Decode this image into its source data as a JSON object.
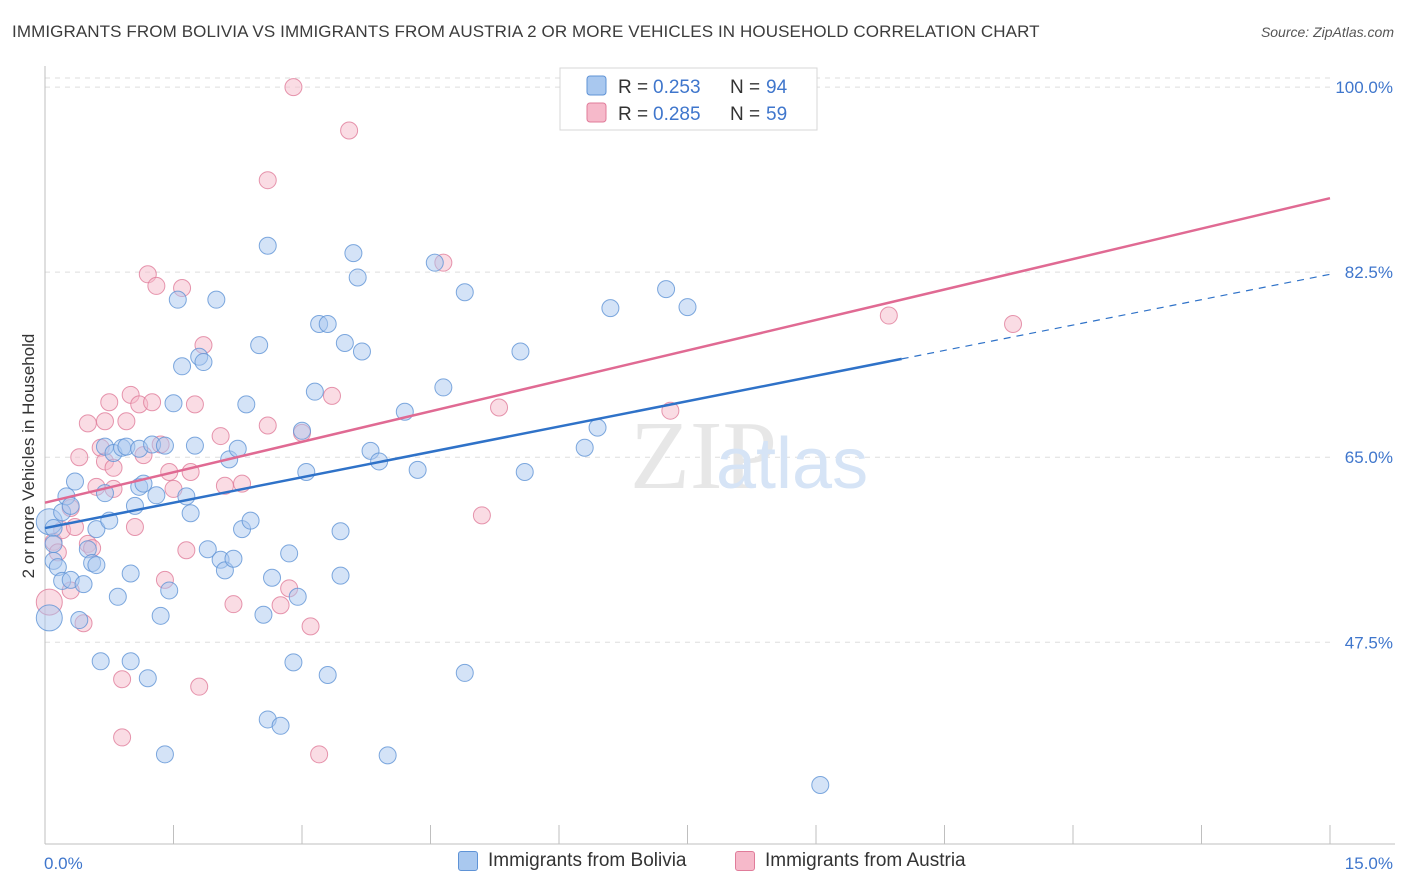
{
  "title": "IMMIGRANTS FROM BOLIVIA VS IMMIGRANTS FROM AUSTRIA 2 OR MORE VEHICLES IN HOUSEHOLD CORRELATION CHART",
  "source": "Source: ZipAtlas.com",
  "watermark": {
    "zip": "ZIP",
    "atlas": "atlas"
  },
  "legend_top": [
    {
      "r_label": "R =",
      "r_value": "0.253",
      "n_label": "N =",
      "n_value": "94"
    },
    {
      "r_label": "R =",
      "r_value": "0.285",
      "n_label": "N =",
      "n_value": "59"
    }
  ],
  "colors": {
    "bolivia_fill": "#a9c8ef",
    "bolivia_stroke": "#5f93d6",
    "bolivia_line": "#2f72c8",
    "austria_fill": "#f6b9ca",
    "austria_stroke": "#e07c9a",
    "austria_line": "#e06a93",
    "value_blue": "#3f76cc",
    "grid": "#dddddd"
  },
  "chart_data": {
    "type": "scatter",
    "title": "IMMIGRANTS FROM BOLIVIA VS IMMIGRANTS FROM AUSTRIA 2 OR MORE VEHICLES IN HOUSEHOLD CORRELATION CHART",
    "xlabel": "",
    "ylabel": "2 or more Vehicles in Household",
    "xlim": [
      0,
      15
    ],
    "ylim": [
      30.5,
      102
    ],
    "x_tick_labels": [
      "0.0%",
      "15.0%"
    ],
    "y_ticks": [
      47.5,
      65.0,
      82.5,
      100.0
    ],
    "y_tick_labels": [
      "47.5%",
      "65.0%",
      "82.5%",
      "100.0%"
    ],
    "grid": true,
    "legend_position": "top-center",
    "series": [
      {
        "name": "Immigrants from Bolivia",
        "r": 0.253,
        "n": 94,
        "trend": {
          "x0": 0.0,
          "y0": 58.3,
          "x1": 10.0,
          "y1": 74.3,
          "dashed_to_x": 15.0,
          "dashed_to_y": 82.3
        },
        "points": [
          [
            0.05,
            49.8
          ],
          [
            0.05,
            58.9
          ],
          [
            0.1,
            58.3
          ],
          [
            0.1,
            55.2
          ],
          [
            0.1,
            56.8
          ],
          [
            0.15,
            54.6
          ],
          [
            0.2,
            53.3
          ],
          [
            0.2,
            59.8
          ],
          [
            0.25,
            61.3
          ],
          [
            0.3,
            60.4
          ],
          [
            0.3,
            53.4
          ],
          [
            0.35,
            62.7
          ],
          [
            0.4,
            49.6
          ],
          [
            0.45,
            53.0
          ],
          [
            0.5,
            56.3
          ],
          [
            0.55,
            55.0
          ],
          [
            0.6,
            54.8
          ],
          [
            0.6,
            58.2
          ],
          [
            0.65,
            45.7
          ],
          [
            0.7,
            66.0
          ],
          [
            0.7,
            61.6
          ],
          [
            0.75,
            59.0
          ],
          [
            0.8,
            65.4
          ],
          [
            0.85,
            51.8
          ],
          [
            0.9,
            65.9
          ],
          [
            0.95,
            66.0
          ],
          [
            1.0,
            45.7
          ],
          [
            1.0,
            54.0
          ],
          [
            1.05,
            60.4
          ],
          [
            1.1,
            62.2
          ],
          [
            1.1,
            65.8
          ],
          [
            1.15,
            62.5
          ],
          [
            1.2,
            44.1
          ],
          [
            1.25,
            66.2
          ],
          [
            1.3,
            61.4
          ],
          [
            1.35,
            50.0
          ],
          [
            1.4,
            36.9
          ],
          [
            1.4,
            66.1
          ],
          [
            1.45,
            52.4
          ],
          [
            1.5,
            70.1
          ],
          [
            1.55,
            79.9
          ],
          [
            1.6,
            73.6
          ],
          [
            1.65,
            61.3
          ],
          [
            1.7,
            59.7
          ],
          [
            1.75,
            66.1
          ],
          [
            1.8,
            74.5
          ],
          [
            1.85,
            74.0
          ],
          [
            1.9,
            56.3
          ],
          [
            2.0,
            79.9
          ],
          [
            2.05,
            55.3
          ],
          [
            2.1,
            54.3
          ],
          [
            2.15,
            64.8
          ],
          [
            2.2,
            55.4
          ],
          [
            2.25,
            65.8
          ],
          [
            2.3,
            58.2
          ],
          [
            2.35,
            70.0
          ],
          [
            2.4,
            59.0
          ],
          [
            2.5,
            75.6
          ],
          [
            2.55,
            50.1
          ],
          [
            2.6,
            40.2
          ],
          [
            2.6,
            85.0
          ],
          [
            2.65,
            53.6
          ],
          [
            2.75,
            39.6
          ],
          [
            2.85,
            55.9
          ],
          [
            2.9,
            45.6
          ],
          [
            2.95,
            51.8
          ],
          [
            3.0,
            67.5
          ],
          [
            3.05,
            63.6
          ],
          [
            3.15,
            71.2
          ],
          [
            3.2,
            77.6
          ],
          [
            3.3,
            77.6
          ],
          [
            3.3,
            44.4
          ],
          [
            3.45,
            58.0
          ],
          [
            3.45,
            53.8
          ],
          [
            3.5,
            75.8
          ],
          [
            3.6,
            84.3
          ],
          [
            3.65,
            82.0
          ],
          [
            3.7,
            75.0
          ],
          [
            3.8,
            65.6
          ],
          [
            3.9,
            64.6
          ],
          [
            4.0,
            36.8
          ],
          [
            4.2,
            69.3
          ],
          [
            4.35,
            63.8
          ],
          [
            4.55,
            83.4
          ],
          [
            4.65,
            71.6
          ],
          [
            4.9,
            80.6
          ],
          [
            4.9,
            44.6
          ],
          [
            5.55,
            75.0
          ],
          [
            5.6,
            63.6
          ],
          [
            6.3,
            65.9
          ],
          [
            6.45,
            67.8
          ],
          [
            6.6,
            79.1
          ],
          [
            7.25,
            80.9
          ],
          [
            7.5,
            79.2
          ],
          [
            9.05,
            34.0
          ]
        ]
      },
      {
        "name": "Immigrants from Austria",
        "r": 0.285,
        "n": 59,
        "trend": {
          "x0": 0.0,
          "y0": 60.7,
          "x1": 15.0,
          "y1": 89.5
        },
        "points": [
          [
            0.05,
            51.3
          ],
          [
            0.1,
            57.0
          ],
          [
            0.15,
            56.0
          ],
          [
            0.2,
            58.1
          ],
          [
            0.3,
            60.2
          ],
          [
            0.3,
            52.4
          ],
          [
            0.35,
            58.4
          ],
          [
            0.4,
            65.0
          ],
          [
            0.45,
            49.3
          ],
          [
            0.5,
            56.8
          ],
          [
            0.5,
            68.2
          ],
          [
            0.55,
            56.4
          ],
          [
            0.6,
            62.2
          ],
          [
            0.65,
            65.9
          ],
          [
            0.7,
            64.6
          ],
          [
            0.7,
            68.4
          ],
          [
            0.75,
            70.2
          ],
          [
            0.8,
            64.0
          ],
          [
            0.8,
            62.0
          ],
          [
            0.9,
            44.0
          ],
          [
            0.9,
            38.5
          ],
          [
            0.95,
            68.4
          ],
          [
            1.0,
            70.9
          ],
          [
            1.05,
            58.4
          ],
          [
            1.1,
            70.0
          ],
          [
            1.15,
            65.2
          ],
          [
            1.2,
            82.3
          ],
          [
            1.25,
            70.2
          ],
          [
            1.3,
            81.2
          ],
          [
            1.35,
            66.2
          ],
          [
            1.4,
            53.4
          ],
          [
            1.45,
            63.6
          ],
          [
            1.5,
            62.0
          ],
          [
            1.6,
            81.0
          ],
          [
            1.65,
            56.2
          ],
          [
            1.7,
            63.6
          ],
          [
            1.75,
            70.0
          ],
          [
            1.8,
            43.3
          ],
          [
            1.85,
            75.6
          ],
          [
            2.05,
            67.0
          ],
          [
            2.1,
            62.3
          ],
          [
            2.2,
            51.1
          ],
          [
            2.3,
            62.5
          ],
          [
            2.6,
            91.2
          ],
          [
            2.6,
            68.0
          ],
          [
            2.75,
            51.0
          ],
          [
            2.85,
            52.6
          ],
          [
            2.9,
            100.0
          ],
          [
            3.0,
            67.3
          ],
          [
            3.1,
            49.0
          ],
          [
            3.2,
            36.9
          ],
          [
            3.35,
            70.8
          ],
          [
            3.55,
            95.9
          ],
          [
            4.65,
            83.4
          ],
          [
            5.1,
            59.5
          ],
          [
            5.3,
            69.7
          ],
          [
            7.3,
            69.4
          ],
          [
            9.85,
            78.4
          ],
          [
            11.3,
            77.6
          ]
        ]
      }
    ]
  },
  "bottom_legend": [
    "Immigrants from Bolivia",
    "Immigrants from Austria"
  ]
}
